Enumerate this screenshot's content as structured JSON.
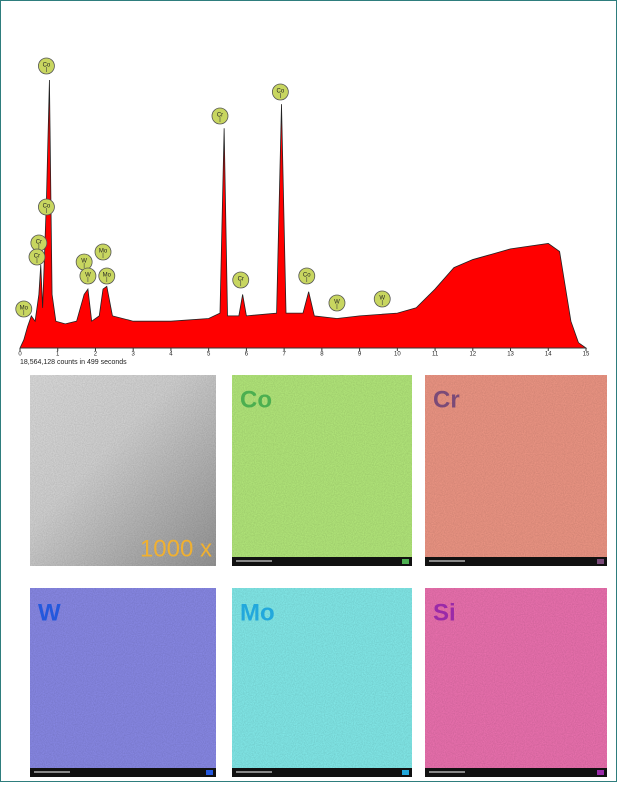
{
  "chart_data": {
    "type": "area",
    "color": "#ff0000",
    "x": [
      0,
      0.1,
      0.2,
      0.3,
      0.4,
      0.5,
      0.55,
      0.6,
      0.7,
      0.78,
      0.85,
      0.95,
      1.2,
      1.5,
      1.7,
      1.8,
      1.9,
      2.1,
      2.2,
      2.3,
      2.45,
      3,
      4,
      5,
      5.3,
      5.41,
      5.5,
      5.8,
      5.9,
      6.0,
      6.8,
      6.93,
      7.05,
      7.5,
      7.65,
      7.8,
      8.4,
      9,
      10,
      10.5,
      11,
      11.5,
      12,
      12.5,
      13,
      13.5,
      14,
      14.3,
      14.6,
      14.8,
      15
    ],
    "values": [
      0,
      3,
      8,
      12,
      10,
      20,
      31,
      15,
      55,
      100,
      20,
      10,
      9,
      10,
      20,
      22,
      10,
      12,
      22,
      23,
      12,
      10,
      10,
      11,
      13,
      82,
      12,
      12,
      20,
      12,
      13,
      91,
      13,
      13,
      21,
      12,
      11,
      12,
      13,
      15,
      22,
      30,
      33,
      35,
      37,
      38,
      39,
      36,
      10,
      2,
      0
    ],
    "xlim": [
      0,
      15
    ],
    "xticks": [
      0,
      1,
      2,
      3,
      4,
      5,
      6,
      7,
      8,
      9,
      10,
      11,
      12,
      13,
      14,
      15
    ],
    "ylim": [
      0,
      100
    ],
    "caption": "18,564,128 counts in 499 seconds",
    "peak_labels": [
      {
        "label": "Co",
        "x": 0.7
      },
      {
        "label": "Co",
        "x": 0.7
      },
      {
        "label": "Cr",
        "x": 0.5
      },
      {
        "label": "Cr",
        "x": 0.45
      },
      {
        "label": "Mo",
        "x": 0.1
      },
      {
        "label": "W",
        "x": 1.7
      },
      {
        "label": "W",
        "x": 1.8
      },
      {
        "label": "Mo",
        "x": 2.2
      },
      {
        "label": "Mo",
        "x": 2.3
      },
      {
        "label": "Cr",
        "x": 5.3
      },
      {
        "label": "Cr",
        "x": 5.85
      },
      {
        "label": "Co",
        "x": 6.9
      },
      {
        "label": "Co",
        "x": 7.6
      },
      {
        "label": "W",
        "x": 8.4
      },
      {
        "label": "W",
        "x": 9.6
      }
    ]
  },
  "maps": [
    {
      "label": "1000 x"
    },
    {
      "label": "Co"
    },
    {
      "label": "Cr"
    },
    {
      "label": "W"
    },
    {
      "label": "Mo"
    },
    {
      "label": "Si"
    }
  ]
}
